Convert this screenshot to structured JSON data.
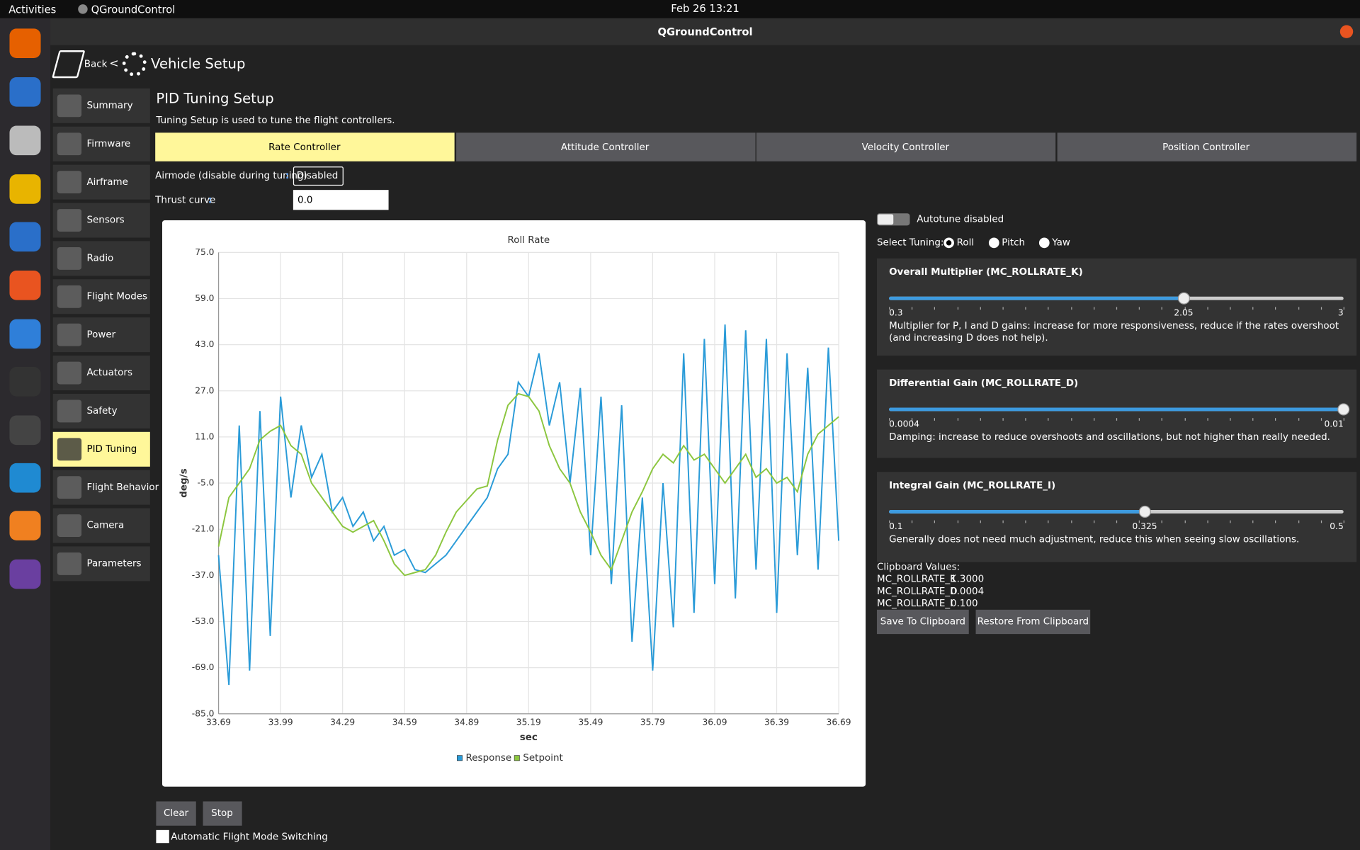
{
  "topbar": {
    "activities": "Activities",
    "app": "QGroundControl",
    "clock": "Feb 26  13:21"
  },
  "window": {
    "title": "QGroundControl"
  },
  "header": {
    "back": "Back",
    "separator": "<",
    "title": "Vehicle Setup"
  },
  "sidebar": {
    "items": [
      "Summary",
      "Firmware",
      "Airframe",
      "Sensors",
      "Radio",
      "Flight Modes",
      "Power",
      "Actuators",
      "Safety",
      "PID Tuning",
      "Flight Behavior",
      "Camera",
      "Parameters"
    ],
    "selected_index": 9
  },
  "page": {
    "title": "PID Tuning Setup",
    "description": "Tuning Setup is used to tune the flight controllers."
  },
  "tabs": {
    "items": [
      "Rate Controller",
      "Attitude Controller",
      "Velocity Controller",
      "Position Controller"
    ],
    "selected_index": 0
  },
  "airmode": {
    "label": "Airmode (disable during tuning)",
    "colon": ":",
    "value": "Disabled"
  },
  "thrust": {
    "label": "Thrust curve",
    "colon": ":",
    "value": "0.0"
  },
  "chart_data": {
    "type": "line",
    "title": "Roll Rate",
    "x_label": "sec",
    "y_label": "deg/s",
    "x": [
      33.69,
      33.74,
      33.79,
      33.84,
      33.89,
      33.94,
      33.99,
      34.04,
      34.09,
      34.14,
      34.19,
      34.24,
      34.29,
      34.34,
      34.39,
      34.44,
      34.49,
      34.54,
      34.59,
      34.64,
      34.69,
      34.74,
      34.79,
      34.84,
      34.89,
      34.94,
      34.99,
      35.04,
      35.09,
      35.14,
      35.19,
      35.24,
      35.29,
      35.34,
      35.39,
      35.44,
      35.49,
      35.54,
      35.59,
      35.64,
      35.69,
      35.74,
      35.79,
      35.84,
      35.89,
      35.94,
      35.99,
      36.04,
      36.09,
      36.14,
      36.19,
      36.24,
      36.29,
      36.34,
      36.39,
      36.44,
      36.49,
      36.54,
      36.59,
      36.64,
      36.69
    ],
    "series": [
      {
        "name": "Response",
        "color": "#2a9bd8",
        "values": [
          -30,
          -75,
          15,
          -70,
          20,
          -58,
          25,
          -10,
          15,
          -3,
          5,
          -15,
          -10,
          -20,
          -15,
          -25,
          -20,
          -30,
          -28,
          -35,
          -36,
          -33,
          -30,
          -25,
          -20,
          -15,
          -10,
          0,
          5,
          30,
          25,
          40,
          15,
          30,
          -5,
          28,
          -30,
          25,
          -40,
          22,
          -60,
          -10,
          -70,
          -5,
          -55,
          40,
          -50,
          45,
          -40,
          50,
          -45,
          48,
          -35,
          45,
          -50,
          40,
          -30,
          35,
          -35,
          42,
          -25
        ]
      },
      {
        "name": "Setpoint",
        "color": "#8cc63f",
        "values": [
          -27,
          -10,
          -5,
          0,
          10,
          13,
          15,
          8,
          5,
          -5,
          -10,
          -15,
          -20,
          -22,
          -20,
          -18,
          -25,
          -33,
          -37,
          -36,
          -35,
          -30,
          -22,
          -15,
          -11,
          -7,
          -6,
          10,
          22,
          26,
          25,
          20,
          8,
          0,
          -5,
          -15,
          -22,
          -30,
          -35,
          -25,
          -15,
          -8,
          0,
          5,
          2,
          8,
          3,
          5,
          0,
          -5,
          0,
          5,
          -3,
          0,
          -5,
          -3,
          -8,
          5,
          12,
          15,
          18
        ]
      }
    ],
    "xlim": [
      33.69,
      36.69
    ],
    "xticks": [
      33.69,
      33.99,
      34.29,
      34.59,
      34.89,
      35.19,
      35.49,
      35.79,
      36.09,
      36.39,
      36.69
    ],
    "ylim": [
      -85,
      75
    ],
    "yticks": [
      {
        "value": 75,
        "label": "75.0"
      },
      {
        "value": 59,
        "label": "59.0"
      },
      {
        "value": 43,
        "label": "43.0"
      },
      {
        "value": 27,
        "label": "27.0"
      },
      {
        "value": 11,
        "label": "11.0"
      },
      {
        "value": -5,
        "label": "-5.0"
      },
      {
        "value": -21,
        "label": "-21.0"
      },
      {
        "value": -37,
        "label": "-37.0"
      },
      {
        "value": -53,
        "label": "-53.0"
      },
      {
        "value": -69,
        "label": "-69.0"
      },
      {
        "value": -85,
        "label": "-85.0"
      }
    ],
    "grid": true
  },
  "autotune": {
    "label": "Autotune disabled"
  },
  "select_tuning": {
    "label": "Select Tuning:",
    "options": [
      "Roll",
      "Pitch",
      "Yaw"
    ],
    "selected_index": 0
  },
  "sliders": [
    {
      "title": "Overall Multiplier (MC_ROLLRATE_K)",
      "min": 0.3,
      "max": 3,
      "value": 2.05,
      "show_value": true,
      "description": "Multiplier for P, I and D gains: increase for more responsiveness, reduce if the rates overshoot (and increasing D does not help)."
    },
    {
      "title": "Differential Gain (MC_ROLLRATE_D)",
      "min": 0.0004,
      "max": 0.01,
      "value": 0.01,
      "show_value": false,
      "description": "Damping: increase to reduce overshoots and oscillations, but not higher than really needed."
    },
    {
      "title": "Integral Gain (MC_ROLLRATE_I)",
      "min": 0.1,
      "max": 0.5,
      "value": 0.325,
      "show_value": true,
      "description": "Generally does not need much adjustment, reduce this when seeing slow oscillations."
    }
  ],
  "clipboard": {
    "title": "Clipboard Values:",
    "rows": [
      [
        "MC_ROLLRATE_K",
        "1.3000"
      ],
      [
        "MC_ROLLRATE_D",
        "0.0004"
      ],
      [
        "MC_ROLLRATE_I",
        "0.100"
      ]
    ],
    "save": "Save To Clipboard",
    "restore": "Restore From Clipboard"
  },
  "bottom": {
    "clear": "Clear",
    "stop": "Stop",
    "checkbox": "Automatic Flight Mode Switching"
  }
}
